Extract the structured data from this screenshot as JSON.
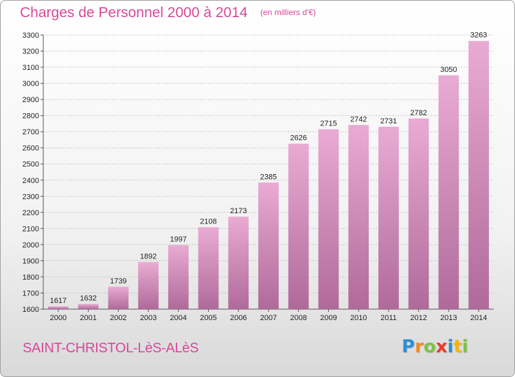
{
  "header": {
    "title": "Charges de Personnel 2000 à 2014",
    "unit": "(en milliers d'€)"
  },
  "footer": {
    "place": "SAINT-CHRISTOL-LèS-ALèS",
    "logo_letters": [
      "P",
      "r",
      "o",
      "x",
      "i",
      "t",
      "i"
    ],
    "logo_colors": [
      "#2a8fd6",
      "#f08a1e",
      "#7cc242",
      "#e63c2c",
      "#2a8fd6",
      "#f5b400",
      "#7cc242"
    ]
  },
  "colors": {
    "bar_top": "#e9abd3",
    "bar_bottom": "#b06a9a",
    "accent": "#d8489a"
  },
  "chart_data": {
    "type": "bar",
    "categories": [
      "2000",
      "2001",
      "2002",
      "2003",
      "2004",
      "2005",
      "2006",
      "2007",
      "2008",
      "2009",
      "2010",
      "2011",
      "2012",
      "2013",
      "2014"
    ],
    "values": [
      1617,
      1632,
      1739,
      1892,
      1997,
      2108,
      2173,
      2385,
      2626,
      2715,
      2742,
      2731,
      2782,
      3050,
      3263
    ],
    "ylim": [
      1600,
      3300
    ],
    "yticks": [
      1600,
      1700,
      1800,
      1900,
      2000,
      2100,
      2200,
      2300,
      2400,
      2500,
      2600,
      2700,
      2800,
      2900,
      3000,
      3100,
      3200,
      3300
    ],
    "grid": true,
    "data_labels": true
  }
}
